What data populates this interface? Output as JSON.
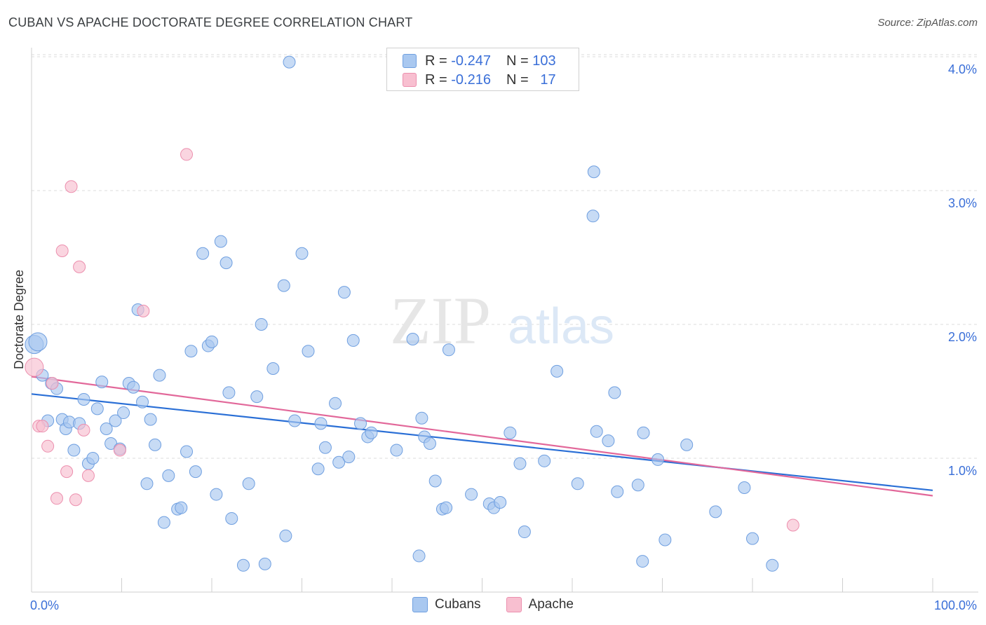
{
  "header": {
    "title": "CUBAN VS APACHE DOCTORATE DEGREE CORRELATION CHART",
    "source": "Source: ZipAtlas.com"
  },
  "legend_top": {
    "rows": [
      {
        "r_label": "R =",
        "r_value": "-0.247",
        "n_label": "N =",
        "n_value": "103"
      },
      {
        "r_label": "R =",
        "r_value": "-0.216",
        "n_label": "N =",
        "n_value": "17"
      }
    ]
  },
  "legend_bottom": {
    "items": [
      {
        "label": "Cubans"
      },
      {
        "label": "Apache"
      }
    ]
  },
  "watermark": {
    "zip": "ZIP",
    "atlas": "atlas"
  },
  "colors": {
    "cubans_fill": "#a9c8f0",
    "cubans_stroke": "#6f9fe0",
    "cubans_line": "#2a6fd6",
    "apache_fill": "#f8bfd0",
    "apache_stroke": "#ec8fae",
    "apache_line": "#e2689a",
    "axis_label": "#3a6fd8",
    "grid": "#dedede"
  },
  "chart_data": {
    "type": "scatter",
    "title": "CUBAN VS APACHE DOCTORATE DEGREE CORRELATION CHART",
    "xlabel": "",
    "ylabel": "Doctorate Degree",
    "xlim": [
      0,
      100
    ],
    "ylim": [
      0,
      4.1
    ],
    "x_tick_labels": [
      "0.0%",
      "100.0%"
    ],
    "y_ticks": [
      1.0,
      2.0,
      3.0,
      4.0
    ],
    "y_tick_labels": [
      "1.0%",
      "2.0%",
      "3.0%",
      "4.0%"
    ],
    "grid": true,
    "series": [
      {
        "name": "Cubans",
        "R": -0.247,
        "N": 103,
        "trend": {
          "x": [
            0,
            100
          ],
          "y": [
            1.48,
            0.76
          ]
        },
        "points": [
          [
            0.3,
            1.85
          ],
          [
            0.7,
            1.87
          ],
          [
            1.2,
            1.62
          ],
          [
            1.8,
            1.28
          ],
          [
            2.2,
            1.56
          ],
          [
            2.8,
            1.52
          ],
          [
            3.4,
            1.29
          ],
          [
            3.8,
            1.22
          ],
          [
            4.2,
            1.27
          ],
          [
            4.7,
            1.06
          ],
          [
            5.3,
            1.26
          ],
          [
            5.8,
            1.44
          ],
          [
            6.3,
            0.96
          ],
          [
            6.8,
            1.0
          ],
          [
            7.3,
            1.37
          ],
          [
            7.8,
            1.57
          ],
          [
            8.3,
            1.22
          ],
          [
            8.8,
            1.11
          ],
          [
            9.3,
            1.28
          ],
          [
            9.8,
            1.07
          ],
          [
            10.2,
            1.34
          ],
          [
            10.8,
            1.56
          ],
          [
            11.3,
            1.53
          ],
          [
            11.8,
            2.11
          ],
          [
            12.3,
            1.42
          ],
          [
            12.8,
            0.81
          ],
          [
            13.2,
            1.29
          ],
          [
            13.7,
            1.1
          ],
          [
            14.2,
            1.62
          ],
          [
            14.7,
            0.52
          ],
          [
            15.2,
            0.87
          ],
          [
            16.2,
            0.62
          ],
          [
            16.6,
            0.63
          ],
          [
            17.2,
            1.05
          ],
          [
            17.7,
            1.8
          ],
          [
            18.2,
            0.9
          ],
          [
            19.0,
            2.53
          ],
          [
            19.6,
            1.84
          ],
          [
            20.0,
            1.87
          ],
          [
            20.5,
            0.73
          ],
          [
            21.0,
            2.62
          ],
          [
            21.6,
            2.46
          ],
          [
            21.9,
            1.49
          ],
          [
            22.2,
            0.55
          ],
          [
            23.5,
            0.2
          ],
          [
            24.1,
            0.81
          ],
          [
            25.0,
            1.46
          ],
          [
            25.5,
            2.0
          ],
          [
            25.9,
            0.21
          ],
          [
            26.8,
            1.67
          ],
          [
            28.0,
            2.29
          ],
          [
            28.2,
            0.42
          ],
          [
            29.2,
            1.28
          ],
          [
            30.0,
            2.53
          ],
          [
            30.7,
            1.8
          ],
          [
            31.8,
            0.92
          ],
          [
            32.1,
            1.26
          ],
          [
            32.6,
            1.08
          ],
          [
            33.7,
            1.41
          ],
          [
            34.1,
            0.97
          ],
          [
            34.7,
            2.24
          ],
          [
            35.2,
            1.01
          ],
          [
            35.7,
            1.88
          ],
          [
            36.5,
            1.26
          ],
          [
            37.3,
            1.16
          ],
          [
            37.7,
            1.19
          ],
          [
            40.5,
            1.06
          ],
          [
            42.3,
            1.89
          ],
          [
            43.0,
            0.27
          ],
          [
            43.3,
            1.3
          ],
          [
            43.6,
            1.16
          ],
          [
            44.2,
            1.11
          ],
          [
            44.8,
            0.83
          ],
          [
            45.6,
            0.62
          ],
          [
            46.0,
            0.63
          ],
          [
            46.3,
            1.81
          ],
          [
            48.8,
            0.73
          ],
          [
            50.8,
            0.66
          ],
          [
            51.3,
            0.63
          ],
          [
            52.0,
            0.67
          ],
          [
            53.1,
            1.19
          ],
          [
            54.2,
            0.96
          ],
          [
            54.7,
            0.45
          ],
          [
            56.9,
            0.98
          ],
          [
            58.3,
            1.65
          ],
          [
            60.6,
            0.81
          ],
          [
            62.3,
            2.81
          ],
          [
            62.4,
            3.14
          ],
          [
            62.7,
            1.2
          ],
          [
            64.0,
            1.13
          ],
          [
            64.7,
            1.49
          ],
          [
            65.0,
            0.75
          ],
          [
            67.3,
            0.8
          ],
          [
            67.8,
            0.23
          ],
          [
            67.9,
            1.19
          ],
          [
            69.5,
            0.99
          ],
          [
            70.3,
            0.39
          ],
          [
            72.7,
            1.1
          ],
          [
            75.9,
            0.6
          ],
          [
            79.1,
            0.78
          ],
          [
            80.0,
            0.4
          ],
          [
            82.2,
            0.2
          ],
          [
            28.6,
            3.96
          ]
        ]
      },
      {
        "name": "Apache",
        "R": -0.216,
        "N": 17,
        "trend": {
          "x": [
            0,
            100
          ],
          "y": [
            1.61,
            0.72
          ]
        },
        "points": [
          [
            0.3,
            1.68
          ],
          [
            0.8,
            1.24
          ],
          [
            1.2,
            1.24
          ],
          [
            1.8,
            1.09
          ],
          [
            2.3,
            1.56
          ],
          [
            2.8,
            0.7
          ],
          [
            3.4,
            2.55
          ],
          [
            3.9,
            0.9
          ],
          [
            4.4,
            3.03
          ],
          [
            4.9,
            0.69
          ],
          [
            5.3,
            2.43
          ],
          [
            5.8,
            1.21
          ],
          [
            6.3,
            0.87
          ],
          [
            9.8,
            1.06
          ],
          [
            12.4,
            2.1
          ],
          [
            17.2,
            3.27
          ],
          [
            84.5,
            0.5
          ]
        ]
      }
    ]
  }
}
